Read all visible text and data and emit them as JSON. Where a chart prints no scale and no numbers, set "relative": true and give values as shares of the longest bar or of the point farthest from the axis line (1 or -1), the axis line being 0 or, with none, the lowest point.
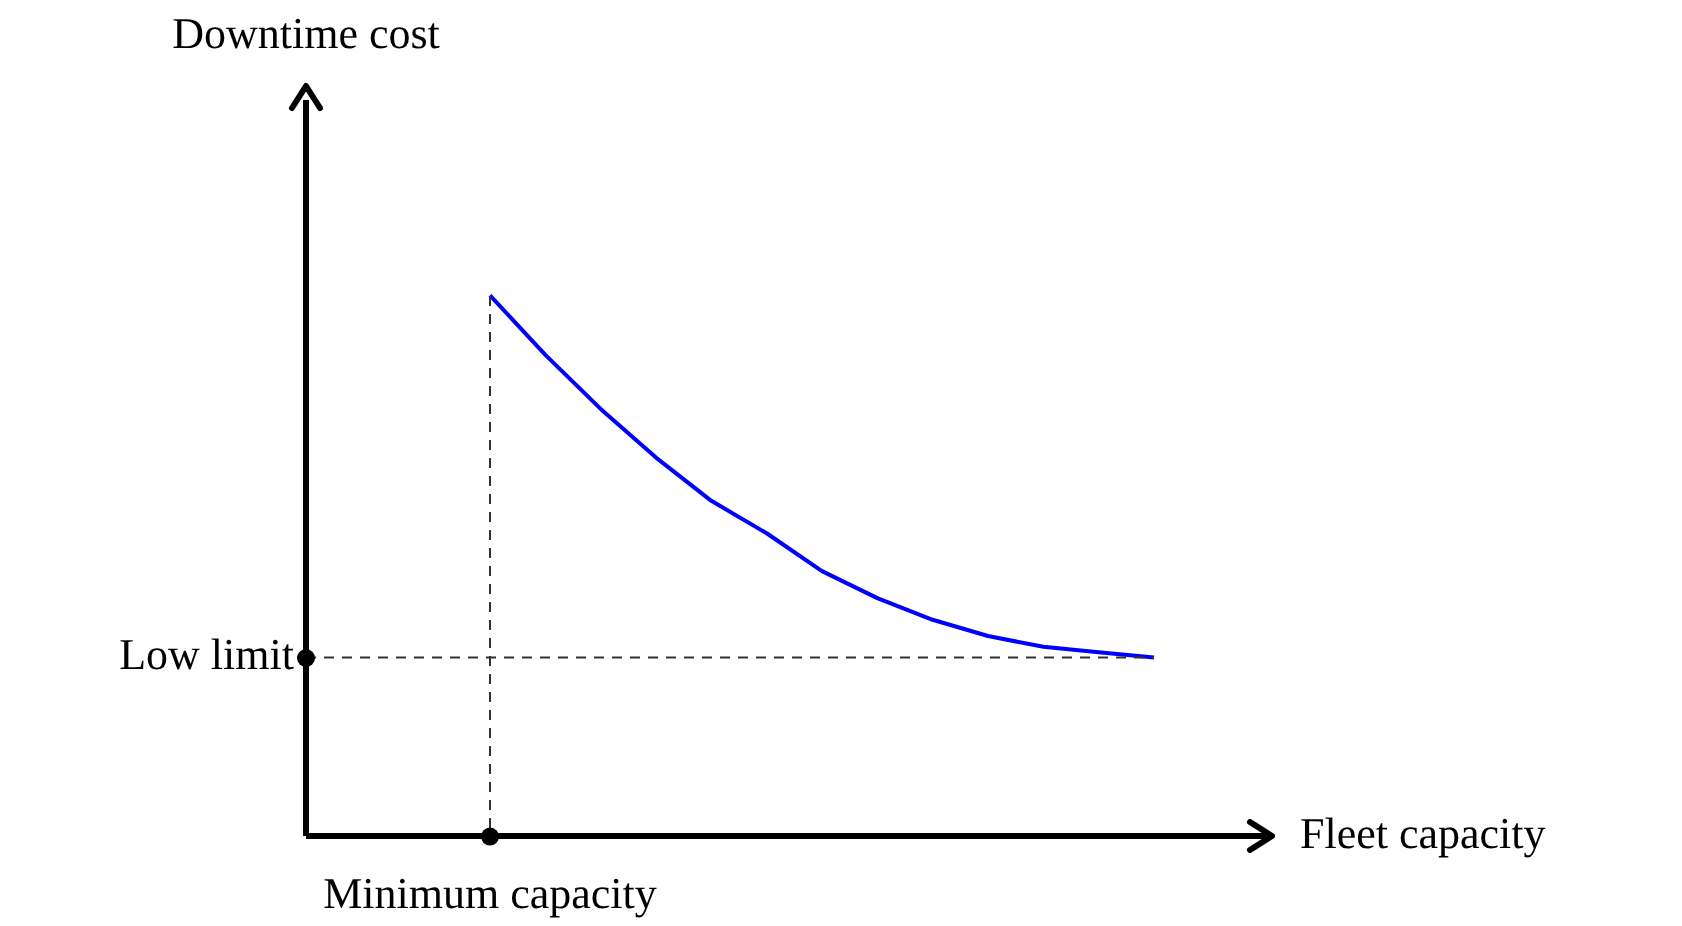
{
  "chart_data": {
    "type": "line",
    "relative": true,
    "xlabel": "Fleet capacity",
    "categories": [
      null,
      null,
      null,
      null,
      null,
      null,
      null,
      null,
      null,
      null,
      null,
      null,
      null
    ],
    "annotations": [
      "Minimum capacity",
      "Downtime cost"
    ],
    "series": [
      {
        "color": "#0000ff",
        "values": [
          1.0,
          0.89,
          0.79,
          0.7,
          0.62,
          0.56,
          0.49,
          0.44,
          0.4,
          0.37,
          0.35,
          0.34,
          0.33
        ]
      }
    ],
    "ref_lines": [
      {
        "axis": "y",
        "value": 0.33,
        "label": "Low limit",
        "line_style": "dashed",
        "color": "#333333"
      }
    ],
    "marker": "none",
    "line_style": "solid",
    "grid": false,
    "legend": false
  }
}
